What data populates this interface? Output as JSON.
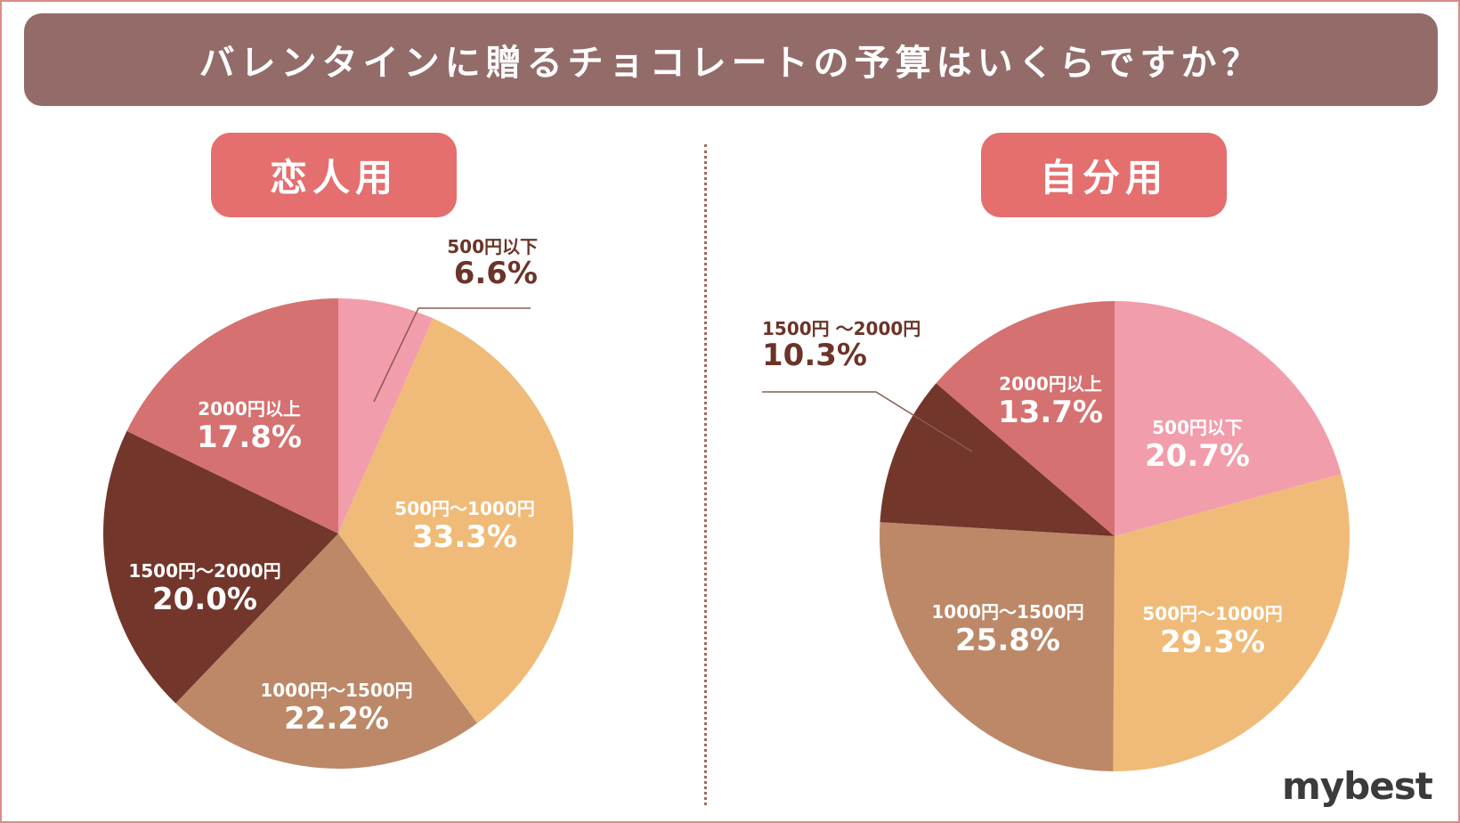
{
  "header": {
    "title": "バレンタインに贈るチョコレートの予算はいくらですか？"
  },
  "brand": {
    "logo_text": "mybest"
  },
  "colors": {
    "title_bg": "#936c6a",
    "pill_bg": "#e56e6e",
    "slice_under500": "#f29dab",
    "slice_500_1000": "#f0bb78",
    "slice_1000_1500": "#bc8868",
    "slice_1500_2000": "#73362b",
    "slice_over2000": "#d57170",
    "label_dark": "#6b3428"
  },
  "chart_data": [
    {
      "type": "pie",
      "title": "恋人用",
      "slices": [
        {
          "label": "500円以下",
          "value": 6.6,
          "display": "6.6%",
          "color": "#f29dab",
          "outside": true
        },
        {
          "label": "500円〜1000円",
          "value": 33.3,
          "display": "33.3%",
          "color": "#f0bb78",
          "outside": false
        },
        {
          "label": "1000円〜1500円",
          "value": 22.2,
          "display": "22.2%",
          "color": "#bc8868",
          "outside": false
        },
        {
          "label": "1500円〜2000円",
          "value": 20.0,
          "display": "20.0%",
          "color": "#73362b",
          "outside": false
        },
        {
          "label": "2000円以上",
          "value": 17.8,
          "display": "17.8%",
          "color": "#d57170",
          "outside": false
        }
      ]
    },
    {
      "type": "pie",
      "title": "自分用",
      "slices": [
        {
          "label": "500円以下",
          "value": 20.7,
          "display": "20.7%",
          "color": "#f29dab",
          "outside": false
        },
        {
          "label": "500円〜1000円",
          "value": 29.3,
          "display": "29.3%",
          "color": "#f0bb78",
          "outside": false
        },
        {
          "label": "1000円〜1500円",
          "value": 25.8,
          "display": "25.8%",
          "color": "#bc8868",
          "outside": false
        },
        {
          "label": "1500円 〜2000円",
          "value": 10.3,
          "display": "10.3%",
          "color": "#73362b",
          "outside": true
        },
        {
          "label": "2000円以上",
          "value": 13.7,
          "display": "13.7%",
          "color": "#d57170",
          "outside": false
        }
      ]
    }
  ]
}
